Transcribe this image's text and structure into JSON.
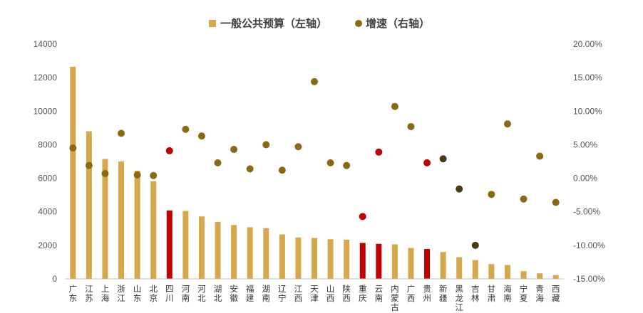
{
  "chart_data": {
    "type": "bar",
    "legend": {
      "bar_label": "一般公共预算（左轴）",
      "dot_label": "增速（右轴）",
      "placement": "top-center"
    },
    "categories": [
      "广东",
      "江苏",
      "上海",
      "浙江",
      "山东",
      "北京",
      "四川",
      "河南",
      "河北",
      "湖北",
      "安徽",
      "福建",
      "湖南",
      "辽宁",
      "江西",
      "天津",
      "山西",
      "陕西",
      "重庆",
      "云南",
      "内蒙古",
      "广西",
      "贵州",
      "新疆",
      "黑龙江",
      "吉林",
      "甘肃",
      "海南",
      "宁夏",
      "青海",
      "西藏"
    ],
    "series": [
      {
        "name": "一般公共预算（左轴）",
        "axis": "left",
        "kind": "bar",
        "values": [
          12650,
          8800,
          7150,
          7000,
          6450,
          5820,
          4080,
          4050,
          3720,
          3400,
          3210,
          3080,
          3020,
          2650,
          2470,
          2440,
          2360,
          2330,
          2140,
          2090,
          2060,
          1840,
          1780,
          1600,
          1290,
          1120,
          880,
          830,
          460,
          330,
          230
        ]
      },
      {
        "name": "增速（右轴）",
        "axis": "right",
        "kind": "scatter",
        "values": [
          4.5,
          1.9,
          0.7,
          6.7,
          0.5,
          0.4,
          4.1,
          7.3,
          6.3,
          2.3,
          4.3,
          1.4,
          5.0,
          1.2,
          4.7,
          14.4,
          2.3,
          1.9,
          -5.7,
          3.9,
          10.7,
          7.7,
          2.3,
          2.9,
          -1.6,
          -10.0,
          -2.4,
          8.1,
          -3.1,
          3.3,
          -3.6
        ]
      }
    ],
    "highlight_categories": [
      "四川",
      "重庆",
      "云南",
      "贵州"
    ],
    "dark_dot_categories": [
      "新疆",
      "黑龙江",
      "吉林"
    ],
    "left_axis": {
      "min": 0,
      "max": 14000,
      "step": 2000,
      "ticks": [
        "0",
        "2000",
        "4000",
        "6000",
        "8000",
        "10000",
        "12000",
        "14000"
      ]
    },
    "right_axis": {
      "min": -15,
      "max": 20,
      "step": 5,
      "ticks": [
        "-15.00%",
        "-10.00%",
        "-5.00%",
        "0.00%",
        "5.00%",
        "10.00%",
        "15.00%",
        "20.00%"
      ]
    },
    "grid": false,
    "colors": {
      "bar": "#D6A84C",
      "bar_highlight": "#C00000",
      "dot": "#8B6914",
      "dot_highlight": "#C00000",
      "dot_dark": "#4A3A12",
      "axis": "#BFBFBF",
      "text": "#555555"
    }
  }
}
